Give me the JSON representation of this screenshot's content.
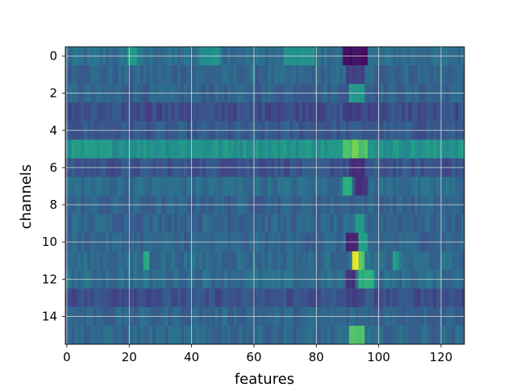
{
  "chart_data": {
    "type": "heatmap",
    "title": "",
    "xlabel": "features",
    "ylabel": "channels",
    "xlim": [
      -0.5,
      127.5
    ],
    "ylim": [
      15.5,
      -0.5
    ],
    "n_rows": 16,
    "n_cols": 128,
    "x_ticks": [
      0,
      20,
      40,
      60,
      80,
      100,
      120
    ],
    "x_tick_labels": [
      "0",
      "20",
      "40",
      "60",
      "80",
      "100",
      "120"
    ],
    "y_ticks": [
      0,
      2,
      4,
      6,
      8,
      10,
      12,
      14
    ],
    "y_tick_labels": [
      "0",
      "2",
      "4",
      "6",
      "8",
      "10",
      "12",
      "14"
    ],
    "grid": true,
    "colormap": "viridis",
    "colors": {
      "grid": "#d9d9d9",
      "axis": "#000000",
      "low": "#440154",
      "mid": "#31688e",
      "high": "#fde725"
    },
    "row_base": [
      0.36,
      0.33,
      0.32,
      0.24,
      0.28,
      0.52,
      0.26,
      0.36,
      0.32,
      0.33,
      0.33,
      0.35,
      0.36,
      0.25,
      0.33,
      0.34
    ],
    "hotspots": [
      {
        "row": 0,
        "x0": 89,
        "x1": 97,
        "value": 0.05
      },
      {
        "row": 0,
        "x0": 20,
        "x1": 23,
        "value": 0.55
      },
      {
        "row": 0,
        "x0": 43,
        "x1": 50,
        "value": 0.5
      },
      {
        "row": 0,
        "x0": 70,
        "x1": 80,
        "value": 0.5
      },
      {
        "row": 1,
        "x0": 90,
        "x1": 96,
        "value": 0.2
      },
      {
        "row": 2,
        "x0": 91,
        "x1": 96,
        "value": 0.55
      },
      {
        "row": 3,
        "x0": 90,
        "x1": 95,
        "value": 0.18
      },
      {
        "row": 5,
        "x0": 89,
        "x1": 97,
        "value": 0.72
      },
      {
        "row": 5,
        "x0": 92,
        "x1": 94,
        "value": 0.82
      },
      {
        "row": 6,
        "x0": 91,
        "x1": 96,
        "value": 0.12
      },
      {
        "row": 7,
        "x0": 89,
        "x1": 92,
        "value": 0.62
      },
      {
        "row": 7,
        "x0": 93,
        "x1": 97,
        "value": 0.15
      },
      {
        "row": 9,
        "x0": 93,
        "x1": 96,
        "value": 0.55
      },
      {
        "row": 10,
        "x0": 90,
        "x1": 94,
        "value": 0.1
      },
      {
        "row": 10,
        "x0": 94,
        "x1": 97,
        "value": 0.55
      },
      {
        "row": 11,
        "x0": 92,
        "x1": 94,
        "value": 0.98
      },
      {
        "row": 11,
        "x0": 94,
        "x1": 96,
        "value": 0.75
      },
      {
        "row": 11,
        "x0": 25,
        "x1": 27,
        "value": 0.62
      },
      {
        "row": 11,
        "x0": 105,
        "x1": 107,
        "value": 0.55
      },
      {
        "row": 12,
        "x0": 94,
        "x1": 99,
        "value": 0.65
      },
      {
        "row": 12,
        "x0": 90,
        "x1": 93,
        "value": 0.15
      },
      {
        "row": 13,
        "x0": 90,
        "x1": 95,
        "value": 0.2
      },
      {
        "row": 15,
        "x0": 91,
        "x1": 96,
        "value": 0.72
      }
    ]
  }
}
